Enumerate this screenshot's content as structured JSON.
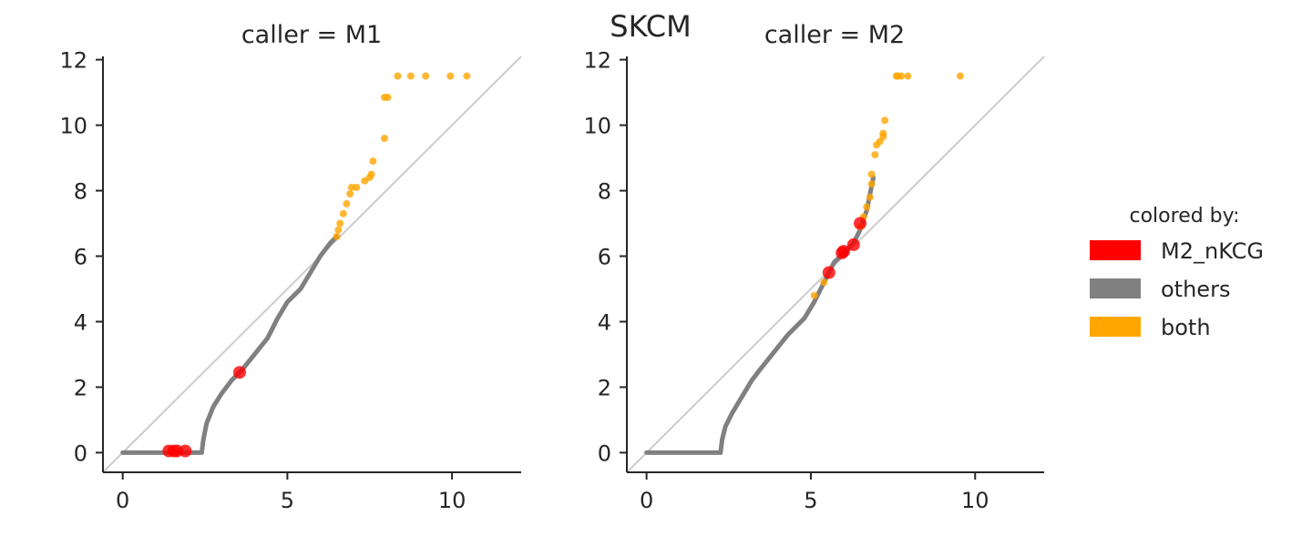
{
  "figure": {
    "suptitle": "SKCM"
  },
  "legend": {
    "title": "colored by:",
    "items": [
      {
        "label": "M2_nKCG",
        "color": "#ff0000"
      },
      {
        "label": "others",
        "color": "#808080"
      },
      {
        "label": "both",
        "color": "#ffa500"
      }
    ]
  },
  "chart_data": [
    {
      "type": "scatter",
      "title": "caller = M1",
      "xlim": [
        -0.6,
        12.1
      ],
      "ylim": [
        -0.6,
        12.1
      ],
      "x_ticks": [
        0,
        5,
        10
      ],
      "y_ticks": [
        0,
        2,
        4,
        6,
        8,
        10,
        12
      ],
      "grid": false,
      "reference_line": [
        [
          -0.6,
          -0.6
        ],
        [
          12.1,
          12.1
        ]
      ],
      "reference_line_color": "#cccccc",
      "series": [
        {
          "name": "others",
          "color": "#808080",
          "style": "curve",
          "points": [
            [
              0,
              0
            ],
            [
              2.4,
              0
            ],
            [
              2.45,
              0.4
            ],
            [
              2.55,
              0.9
            ],
            [
              2.75,
              1.4
            ],
            [
              3.0,
              1.8
            ],
            [
              3.3,
              2.2
            ],
            [
              3.6,
              2.5
            ],
            [
              4.0,
              3.0
            ],
            [
              4.4,
              3.5
            ],
            [
              4.7,
              4.1
            ],
            [
              5.0,
              4.6
            ],
            [
              5.4,
              5.0
            ],
            [
              5.7,
              5.5
            ],
            [
              6.0,
              6.0
            ],
            [
              6.3,
              6.4
            ],
            [
              6.5,
              6.6
            ]
          ]
        },
        {
          "name": "M2_nKCG",
          "color": "#ff0000",
          "style": "markers",
          "points": [
            [
              1.4,
              0.05
            ],
            [
              1.55,
              0.05
            ],
            [
              1.65,
              0.05
            ],
            [
              1.9,
              0.05
            ],
            [
              3.55,
              2.45
            ]
          ]
        },
        {
          "name": "both",
          "color": "#ffa500",
          "style": "markers",
          "points": [
            [
              6.5,
              6.6
            ],
            [
              6.55,
              6.8
            ],
            [
              6.6,
              7.0
            ],
            [
              6.7,
              7.3
            ],
            [
              6.8,
              7.6
            ],
            [
              6.9,
              7.9
            ],
            [
              6.95,
              8.1
            ],
            [
              7.1,
              8.1
            ],
            [
              7.35,
              8.3
            ],
            [
              7.5,
              8.4
            ],
            [
              7.55,
              8.5
            ],
            [
              7.6,
              8.9
            ],
            [
              7.95,
              9.6
            ],
            [
              7.95,
              10.85
            ],
            [
              8.05,
              10.85
            ],
            [
              8.35,
              11.5
            ],
            [
              8.75,
              11.5
            ],
            [
              9.2,
              11.5
            ],
            [
              9.95,
              11.5
            ],
            [
              10.45,
              11.5
            ]
          ]
        }
      ]
    },
    {
      "type": "scatter",
      "title": "caller = M2",
      "xlim": [
        -0.6,
        12.1
      ],
      "ylim": [
        -0.6,
        12.1
      ],
      "x_ticks": [
        0,
        5,
        10
      ],
      "y_ticks": [
        0,
        2,
        4,
        6,
        8,
        10,
        12
      ],
      "grid": false,
      "reference_line": [
        [
          -0.6,
          -0.6
        ],
        [
          12.1,
          12.1
        ]
      ],
      "reference_line_color": "#cccccc",
      "series": [
        {
          "name": "others",
          "color": "#808080",
          "style": "curve",
          "points": [
            [
              0,
              0
            ],
            [
              2.25,
              0
            ],
            [
              2.3,
              0.4
            ],
            [
              2.4,
              0.8
            ],
            [
              2.6,
              1.2
            ],
            [
              2.9,
              1.7
            ],
            [
              3.2,
              2.2
            ],
            [
              3.5,
              2.6
            ],
            [
              3.9,
              3.1
            ],
            [
              4.3,
              3.6
            ],
            [
              4.8,
              4.1
            ],
            [
              5.1,
              4.6
            ],
            [
              5.4,
              5.2
            ],
            [
              5.7,
              5.8
            ],
            [
              6.0,
              6.1
            ],
            [
              6.3,
              6.4
            ],
            [
              6.5,
              6.8
            ],
            [
              6.7,
              7.4
            ],
            [
              6.8,
              7.9
            ],
            [
              6.9,
              8.4
            ]
          ]
        },
        {
          "name": "M2_nKCG",
          "color": "#ff0000",
          "style": "markers",
          "points": [
            [
              5.55,
              5.5
            ],
            [
              5.95,
              6.1
            ],
            [
              6.0,
              6.15
            ],
            [
              6.3,
              6.35
            ],
            [
              6.5,
              7.0
            ]
          ]
        },
        {
          "name": "both",
          "color": "#ffa500",
          "style": "markers",
          "points": [
            [
              5.1,
              4.8
            ],
            [
              5.4,
              5.2
            ],
            [
              6.5,
              6.9
            ],
            [
              6.6,
              7.2
            ],
            [
              6.7,
              7.5
            ],
            [
              6.8,
              7.8
            ],
            [
              6.85,
              8.2
            ],
            [
              6.85,
              8.5
            ],
            [
              6.95,
              9.1
            ],
            [
              7.0,
              9.4
            ],
            [
              7.1,
              9.5
            ],
            [
              7.2,
              9.75
            ],
            [
              7.2,
              9.65
            ],
            [
              7.25,
              10.15
            ],
            [
              7.6,
              11.5
            ],
            [
              7.65,
              11.5
            ],
            [
              7.75,
              11.5
            ],
            [
              7.95,
              11.5
            ],
            [
              9.55,
              11.5
            ]
          ]
        }
      ]
    }
  ]
}
